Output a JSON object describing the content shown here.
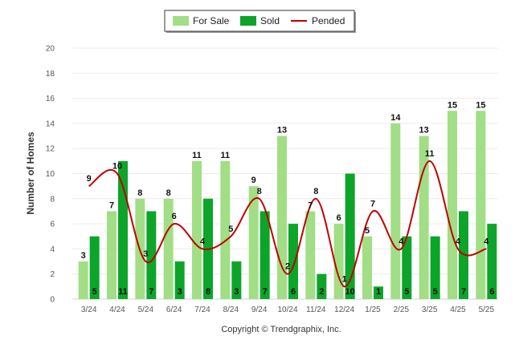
{
  "chart_data": {
    "type": "bar",
    "categories": [
      "3/24",
      "4/24",
      "5/24",
      "6/24",
      "7/24",
      "8/24",
      "9/24",
      "10/24",
      "11/24",
      "12/24",
      "1/25",
      "2/25",
      "3/25",
      "4/25",
      "5/25"
    ],
    "series": [
      {
        "name": "For Sale",
        "kind": "bar",
        "color": "#a1de86",
        "values": [
          3,
          7,
          8,
          8,
          11,
          11,
          9,
          13,
          7,
          6,
          5,
          14,
          13,
          15,
          15
        ]
      },
      {
        "name": "Sold",
        "kind": "bar",
        "color": "#0ca52a",
        "values": [
          5,
          11,
          7,
          3,
          8,
          3,
          7,
          6,
          2,
          10,
          1,
          5,
          5,
          7,
          6
        ]
      },
      {
        "name": "Pended",
        "kind": "line",
        "color": "#c00000",
        "values": [
          9,
          10,
          3,
          6,
          4,
          5,
          8,
          2,
          8,
          1,
          7,
          4,
          11,
          4,
          4
        ]
      }
    ],
    "ylabel": "Number of Homes",
    "xlabel": "",
    "ylim": [
      0,
      20
    ],
    "yticks": [
      0,
      2,
      4,
      6,
      8,
      10,
      12,
      14,
      16,
      18,
      20
    ],
    "grid": true,
    "legend_position": "top-center"
  },
  "footer": {
    "copyright": "Copyright © Trendgraphix, Inc."
  }
}
